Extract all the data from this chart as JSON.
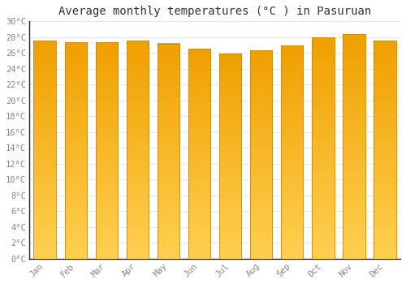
{
  "title": "Average monthly temperatures (°C ) in Pasuruan",
  "months": [
    "Jan",
    "Feb",
    "Mar",
    "Apr",
    "May",
    "Jun",
    "Jul",
    "Aug",
    "Sep",
    "Oct",
    "Nov",
    "Dec"
  ],
  "values": [
    27.6,
    27.4,
    27.4,
    27.6,
    27.2,
    26.5,
    25.9,
    26.3,
    26.9,
    28.0,
    28.4,
    27.6
  ],
  "bar_color_dark": "#F0A000",
  "bar_color_light": "#FFD050",
  "bar_edge_color": "#CC8800",
  "background_color": "#FFFFFF",
  "grid_color": "#DDDDDD",
  "ytick_labels": [
    "0°C",
    "2°C",
    "4°C",
    "6°C",
    "8°C",
    "10°C",
    "12°C",
    "14°C",
    "16°C",
    "18°C",
    "20°C",
    "22°C",
    "24°C",
    "26°C",
    "28°C",
    "30°C"
  ],
  "ytick_values": [
    0,
    2,
    4,
    6,
    8,
    10,
    12,
    14,
    16,
    18,
    20,
    22,
    24,
    26,
    28,
    30
  ],
  "ylim": [
    0,
    30
  ],
  "title_fontsize": 10,
  "tick_fontsize": 7.5,
  "font_family": "monospace",
  "bar_width": 0.72,
  "spine_color": "#222222"
}
